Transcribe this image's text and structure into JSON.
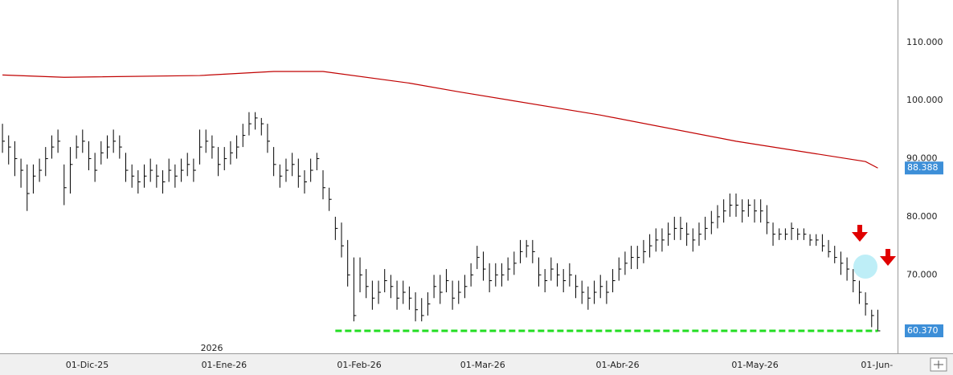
{
  "chart_data": {
    "type": "ohlc",
    "high": [
      96,
      94,
      93,
      90,
      89,
      89,
      90,
      92,
      94,
      95,
      89,
      92,
      94,
      95,
      93,
      91,
      93,
      94,
      95,
      94,
      91,
      89,
      88,
      89,
      90,
      89,
      88,
      90,
      89,
      90,
      91,
      90,
      95,
      95,
      94,
      92,
      92,
      93,
      94,
      96,
      98,
      98,
      97,
      96,
      92,
      89,
      90,
      91,
      90,
      88,
      90,
      91,
      88,
      85,
      80,
      79,
      76,
      73,
      73,
      71,
      69,
      69,
      71,
      70,
      69,
      69,
      68,
      67,
      66,
      67,
      70,
      70,
      71,
      69,
      69,
      70,
      72,
      75,
      74,
      72,
      72,
      72,
      73,
      74,
      76,
      76,
      76,
      73,
      71,
      73,
      72,
      71,
      72,
      70,
      69,
      68,
      69,
      70,
      69,
      71,
      73,
      74,
      75,
      75,
      76,
      77,
      78,
      78,
      79,
      80,
      80,
      79,
      78,
      79,
      80,
      81,
      82,
      83,
      84,
      84,
      83,
      83,
      83,
      83,
      82,
      79,
      78,
      78,
      79,
      78,
      78,
      77,
      77,
      77,
      76,
      75,
      74,
      73,
      71,
      69,
      67,
      64,
      64
    ],
    "low": [
      91,
      89,
      87,
      85,
      81,
      84,
      86,
      87,
      90,
      91,
      82,
      84,
      90,
      91,
      88,
      86,
      89,
      90,
      91,
      90,
      86,
      85,
      84,
      85,
      86,
      85,
      84,
      86,
      85,
      86,
      87,
      86,
      89,
      91,
      90,
      87,
      88,
      89,
      90,
      92,
      94,
      95,
      94,
      91,
      87,
      85,
      86,
      87,
      85,
      84,
      86,
      88,
      83,
      81,
      76,
      73,
      68,
      62,
      67,
      66,
      64,
      65,
      67,
      66,
      64,
      65,
      64,
      62,
      62,
      63,
      66,
      65,
      67,
      64,
      65,
      66,
      68,
      71,
      69,
      67,
      68,
      68,
      69,
      70,
      72,
      73,
      72,
      68,
      67,
      69,
      68,
      67,
      68,
      66,
      65,
      64,
      65,
      66,
      65,
      67,
      69,
      70,
      71,
      71,
      72,
      73,
      74,
      74,
      75,
      76,
      76,
      75,
      74,
      75,
      76,
      77,
      78,
      79,
      80,
      80,
      79,
      80,
      79,
      79,
      77,
      75,
      76,
      76,
      76,
      76,
      76,
      75,
      75,
      74,
      73,
      72,
      70,
      69,
      67,
      65,
      63,
      61,
      60.37
    ],
    "close": [
      93,
      92,
      90,
      88,
      84,
      87,
      88,
      90,
      92,
      93,
      85,
      89,
      92,
      93,
      90,
      88,
      91,
      92,
      93,
      92,
      88,
      87,
      86,
      87,
      88,
      87,
      86,
      88,
      87,
      88,
      89,
      88,
      92,
      93,
      92,
      89,
      90,
      91,
      92,
      94,
      96,
      97,
      96,
      93,
      89,
      87,
      88,
      89,
      87,
      86,
      88,
      90,
      85,
      83,
      78,
      75,
      70,
      63,
      70,
      68,
      66,
      67,
      69,
      68,
      66,
      67,
      66,
      64,
      63,
      65,
      68,
      67,
      69,
      66,
      67,
      68,
      70,
      73,
      71,
      69,
      70,
      70,
      71,
      72,
      74,
      75,
      74,
      70,
      69,
      71,
      70,
      69,
      70,
      68,
      67,
      66,
      67,
      68,
      67,
      69,
      71,
      72,
      73,
      73,
      74,
      75,
      76,
      76,
      77,
      78,
      78,
      77,
      76,
      77,
      78,
      79,
      80,
      81,
      82,
      82,
      81,
      82,
      81,
      81,
      79,
      77,
      77,
      77,
      78,
      77,
      77,
      76,
      76,
      75,
      74,
      73,
      72,
      71,
      69,
      67,
      65,
      63,
      60.37
    ],
    "bar_color": "#000000",
    "ma": {
      "color": "#c00000",
      "x": [
        0,
        10,
        32,
        44,
        52,
        66,
        74,
        97,
        119,
        140,
        142
      ],
      "values": [
        104.4,
        104,
        104.3,
        105,
        105,
        103,
        101.5,
        97.5,
        93,
        89.5,
        88.388
      ]
    },
    "xlim": [
      -0.4,
      145.2
    ],
    "xticks": [
      {
        "value": 10,
        "label": "01-Dic-25"
      },
      {
        "value": 32,
        "label": "01-Ene-26"
      },
      {
        "value": 54,
        "label": "01-Feb-26"
      },
      {
        "value": 74,
        "label": "01-Mar-26"
      },
      {
        "value": 96,
        "label": "01-Abr-26"
      },
      {
        "value": 118,
        "label": "01-May-26"
      },
      {
        "value": 139,
        "label": "01-Jun-"
      }
    ],
    "year_marker": {
      "value": 32,
      "label": "2026"
    },
    "ylim": [
      56.5,
      117.3
    ],
    "yticks": [
      {
        "value": 70,
        "label": "70.000"
      },
      {
        "value": 80,
        "label": "80.000"
      },
      {
        "value": 90,
        "label": "90.000"
      },
      {
        "value": 100,
        "label": "100.000"
      },
      {
        "value": 110,
        "label": "110.000"
      }
    ],
    "price_labels": [
      {
        "value": 88.388,
        "label": "88.388"
      },
      {
        "value": 60.37,
        "label": "60.370"
      }
    ],
    "support_line": {
      "value": 60.37,
      "from": 54,
      "color": "#22dd22"
    },
    "grid": true
  }
}
